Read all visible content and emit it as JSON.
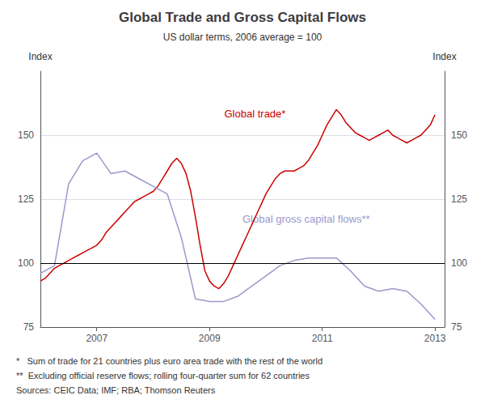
{
  "chart_data": {
    "type": "line",
    "title": "Global Trade and Gross Capital Flows",
    "subtitle": "US dollar terms, 2006 average = 100",
    "y_label": "Index",
    "y2_label": "Index",
    "xlim": [
      2006.0,
      2013.17
    ],
    "xticks": [
      2007,
      2009,
      2011,
      2013
    ],
    "ylim": [
      75,
      175
    ],
    "yticks": [
      75,
      100,
      125,
      150
    ],
    "y2lim": [
      75,
      175
    ],
    "y2ticks": [
      75,
      100,
      125,
      150
    ],
    "grid": true,
    "reference_line": {
      "value": 100,
      "color": "#000000"
    },
    "annotations": [
      "*   Sum of trade for 21 countries plus euro area trade with the rest of the world",
      "**  Excluding official reserve flows; rolling four-quarter sum for 62 countries",
      "Sources: CEIC Data; IMF; RBA; Thomson Reuters"
    ],
    "series": [
      {
        "name": "Global trade*",
        "color": "#cc0000",
        "x": [
          2006.0,
          2006.083,
          2006.167,
          2006.25,
          2006.333,
          2006.417,
          2006.5,
          2006.583,
          2006.667,
          2006.75,
          2006.833,
          2006.917,
          2007.0,
          2007.083,
          2007.167,
          2007.25,
          2007.333,
          2007.417,
          2007.5,
          2007.583,
          2007.667,
          2007.75,
          2007.833,
          2007.917,
          2008.0,
          2008.083,
          2008.167,
          2008.25,
          2008.333,
          2008.417,
          2008.5,
          2008.583,
          2008.667,
          2008.75,
          2008.833,
          2008.917,
          2009.0,
          2009.083,
          2009.167,
          2009.25,
          2009.333,
          2009.417,
          2009.5,
          2009.583,
          2009.667,
          2009.75,
          2009.833,
          2009.917,
          2010.0,
          2010.083,
          2010.167,
          2010.25,
          2010.333,
          2010.417,
          2010.5,
          2010.583,
          2010.667,
          2010.75,
          2010.833,
          2010.917,
          2011.0,
          2011.083,
          2011.167,
          2011.25,
          2011.333,
          2011.417,
          2011.5,
          2011.583,
          2011.667,
          2011.75,
          2011.833,
          2011.917,
          2012.0,
          2012.083,
          2012.167,
          2012.25,
          2012.333,
          2012.417,
          2012.5,
          2012.583,
          2012.667,
          2012.75,
          2012.833,
          2012.917,
          2013.0
        ],
        "values": [
          93,
          94,
          96,
          98,
          99,
          100,
          101,
          102,
          103,
          104,
          105,
          106,
          107,
          109,
          112,
          114,
          116,
          118,
          120,
          122,
          124,
          125,
          126,
          127,
          128,
          130,
          133,
          136,
          139,
          141,
          139,
          135,
          128,
          118,
          107,
          97,
          93,
          91,
          90,
          92,
          95,
          99,
          103,
          107,
          111,
          115,
          119,
          123,
          127,
          130,
          133,
          135,
          136,
          136,
          136,
          137,
          138,
          140,
          143,
          146,
          150,
          154,
          157,
          160,
          158,
          155,
          153,
          151,
          150,
          149,
          148,
          149,
          150,
          151,
          152,
          150,
          149,
          148,
          147,
          148,
          149,
          150,
          152,
          154,
          158
        ]
      },
      {
        "name": "Global gross capital flows**",
        "color": "#9999cc",
        "x": [
          2006.0,
          2006.25,
          2006.5,
          2006.75,
          2007.0,
          2007.25,
          2007.5,
          2007.75,
          2008.0,
          2008.25,
          2008.5,
          2008.75,
          2009.0,
          2009.25,
          2009.5,
          2009.75,
          2010.0,
          2010.25,
          2010.5,
          2010.75,
          2011.0,
          2011.25,
          2011.5,
          2011.75,
          2012.0,
          2012.25,
          2012.5,
          2012.75,
          2013.0
        ],
        "values": [
          96,
          99,
          131,
          140,
          143,
          135,
          136,
          133,
          130,
          127,
          110,
          86,
          85,
          85,
          87,
          91,
          95,
          99,
          101,
          102,
          102,
          102,
          97,
          91,
          89,
          90,
          89,
          84,
          78
        ]
      }
    ]
  }
}
